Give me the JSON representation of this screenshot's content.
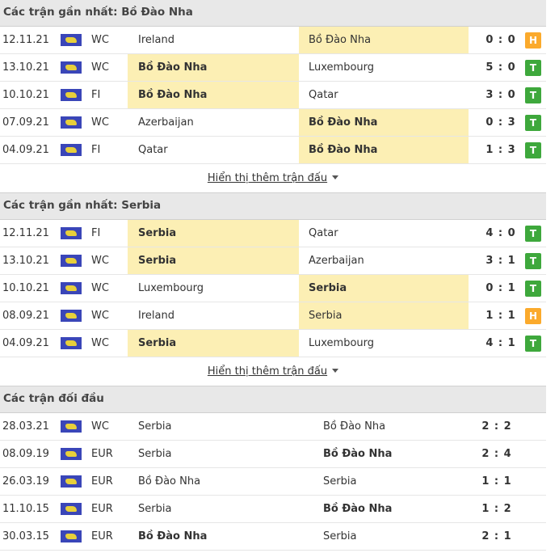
{
  "colors": {
    "highlight": "#fcefb4",
    "win": "#3ea83c",
    "draw": "#fbaa2c",
    "header": "#e8e8e8"
  },
  "sections": [
    {
      "title": "Các trận gần nhất: Bồ Đào Nha",
      "more": "Hiển thị thêm trận đấu",
      "rows": [
        {
          "date": "12.11.21",
          "comp": "WC",
          "home": "Ireland",
          "away": "Bồ Đào Nha",
          "score": "0 : 0",
          "result": "H",
          "hl": "away",
          "bold": ""
        },
        {
          "date": "13.10.21",
          "comp": "WC",
          "home": "Bồ Đào Nha",
          "away": "Luxembourg",
          "score": "5 : 0",
          "result": "T",
          "hl": "home",
          "bold": "home"
        },
        {
          "date": "10.10.21",
          "comp": "FI",
          "home": "Bồ Đào Nha",
          "away": "Qatar",
          "score": "3 : 0",
          "result": "T",
          "hl": "home",
          "bold": "home"
        },
        {
          "date": "07.09.21",
          "comp": "WC",
          "home": "Azerbaijan",
          "away": "Bồ Đào Nha",
          "score": "0 : 3",
          "result": "T",
          "hl": "away",
          "bold": "away"
        },
        {
          "date": "04.09.21",
          "comp": "FI",
          "home": "Qatar",
          "away": "Bồ Đào Nha",
          "score": "1 : 3",
          "result": "T",
          "hl": "away",
          "bold": "away"
        }
      ]
    },
    {
      "title": "Các trận gần nhất: Serbia",
      "more": "Hiển thị thêm trận đấu",
      "rows": [
        {
          "date": "12.11.21",
          "comp": "FI",
          "home": "Serbia",
          "away": "Qatar",
          "score": "4 : 0",
          "result": "T",
          "hl": "home",
          "bold": "home"
        },
        {
          "date": "13.10.21",
          "comp": "WC",
          "home": "Serbia",
          "away": "Azerbaijan",
          "score": "3 : 1",
          "result": "T",
          "hl": "home",
          "bold": "home"
        },
        {
          "date": "10.10.21",
          "comp": "WC",
          "home": "Luxembourg",
          "away": "Serbia",
          "score": "0 : 1",
          "result": "T",
          "hl": "away",
          "bold": "away"
        },
        {
          "date": "08.09.21",
          "comp": "WC",
          "home": "Ireland",
          "away": "Serbia",
          "score": "1 : 1",
          "result": "H",
          "hl": "away",
          "bold": ""
        },
        {
          "date": "04.09.21",
          "comp": "WC",
          "home": "Serbia",
          "away": "Luxembourg",
          "score": "4 : 1",
          "result": "T",
          "hl": "home",
          "bold": "home"
        }
      ]
    },
    {
      "title": "Các trận đối đầu",
      "h2h": true,
      "rows": [
        {
          "date": "28.03.21",
          "comp": "WC",
          "home": "Serbia",
          "away": "Bồ Đào Nha",
          "score": "2 : 2",
          "bold": ""
        },
        {
          "date": "08.09.19",
          "comp": "EUR",
          "home": "Serbia",
          "away": "Bồ Đào Nha",
          "score": "2 : 4",
          "bold": "away"
        },
        {
          "date": "26.03.19",
          "comp": "EUR",
          "home": "Bồ Đào Nha",
          "away": "Serbia",
          "score": "1 : 1",
          "bold": ""
        },
        {
          "date": "11.10.15",
          "comp": "EUR",
          "home": "Serbia",
          "away": "Bồ Đào Nha",
          "score": "1 : 2",
          "bold": "away"
        },
        {
          "date": "30.03.15",
          "comp": "EUR",
          "home": "Bồ Đào Nha",
          "away": "Serbia",
          "score": "2 : 1",
          "bold": "home"
        }
      ]
    }
  ]
}
